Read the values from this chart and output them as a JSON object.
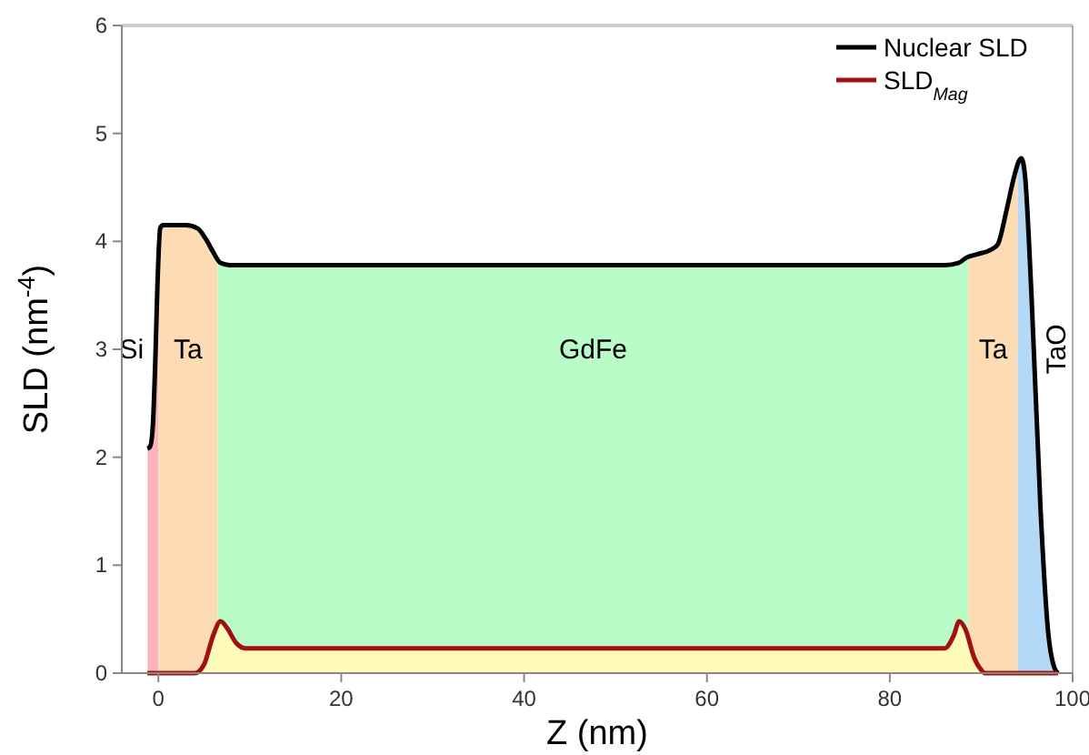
{
  "chart_data": {
    "type": "line",
    "xlabel": "Z (nm)",
    "ylabel": "SLD (nm$^{-4}$)",
    "xlim": [
      -4,
      100
    ],
    "ylim": [
      0,
      6
    ],
    "xticks": [
      0,
      20,
      40,
      60,
      80,
      100
    ],
    "yticks": [
      0,
      1,
      2,
      3,
      4,
      5,
      6
    ],
    "grid": false,
    "legend": "top right",
    "line_style": "solid",
    "series": [
      {
        "name": "Nuclear SLD",
        "color": "#000000",
        "x": [
          -1.2,
          -0.9,
          -0.6,
          -0.3,
          -0.1,
          0.2,
          0.5,
          3,
          4.3,
          5.2,
          6,
          6.8,
          7.8,
          10,
          86,
          87.5,
          88.4,
          89.5,
          91,
          91.8,
          92.8,
          93.6,
          94.1,
          94.4,
          94.8,
          95.5,
          96.5,
          97.3,
          98,
          98.4
        ],
        "values": [
          2.08,
          2.1,
          2.3,
          3.0,
          3.6,
          4.12,
          4.15,
          4.15,
          4.12,
          4.02,
          3.9,
          3.8,
          3.78,
          3.78,
          3.78,
          3.8,
          3.85,
          3.88,
          3.92,
          3.97,
          4.3,
          4.6,
          4.74,
          4.77,
          4.6,
          3.5,
          1.5,
          0.4,
          0.05,
          0
        ]
      },
      {
        "name": "SLD$_{Mag}$",
        "color": "#a01010",
        "x": [
          -1.2,
          4,
          5,
          6,
          6.8,
          7.5,
          8.5,
          9.5,
          86,
          87,
          87.6,
          88.3,
          89.2,
          90,
          90.4,
          98.4
        ],
        "values": [
          0,
          0,
          0.08,
          0.35,
          0.48,
          0.42,
          0.28,
          0.23,
          0.23,
          0.35,
          0.48,
          0.4,
          0.15,
          0.03,
          0,
          0
        ]
      }
    ],
    "bands": [
      {
        "axis": "x",
        "from": -1.2,
        "to": 0,
        "label": "Si",
        "color": "#ffb3c1"
      },
      {
        "axis": "x",
        "from": 0,
        "to": 6.5,
        "label": "Ta",
        "color": "#fddcb5"
      },
      {
        "axis": "x",
        "from": 6.5,
        "to": 88.6,
        "label": "GdFe",
        "color": "#b9fcc8"
      },
      {
        "axis": "x",
        "from": 88.6,
        "to": 94,
        "label": "Ta",
        "color": "#fddcb5"
      },
      {
        "axis": "x",
        "from": 94,
        "to": 98.4,
        "label": "TaO",
        "color": "#b3d9f7"
      },
      {
        "axis": "x",
        "from": 4,
        "to": 90.4,
        "color": "#fffbb8"
      }
    ]
  }
}
